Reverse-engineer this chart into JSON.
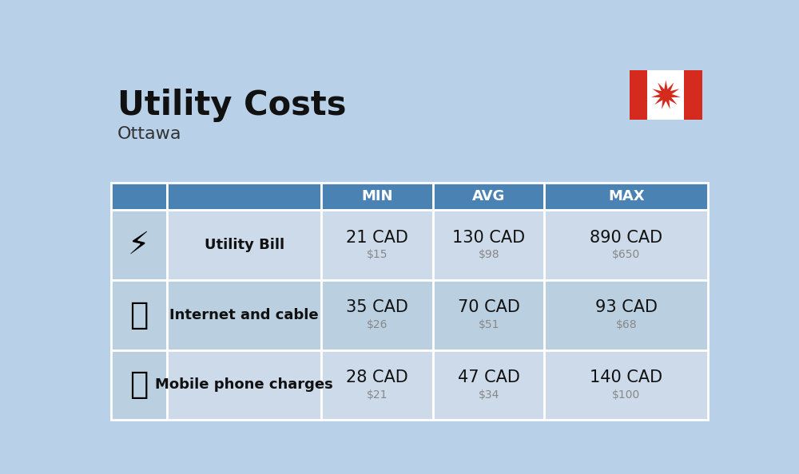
{
  "title": "Utility Costs",
  "subtitle": "Ottawa",
  "background_color": "#b8d0e8",
  "header_color": "#4a82b4",
  "header_text_color": "#ffffff",
  "row_color_light": "#ccdaea",
  "row_color_dark": "#bacfe0",
  "icon_col_bg": "#bacfe0",
  "divider_color": "#ffffff",
  "rows": [
    {
      "label": "Utility Bill",
      "min_cad": "21 CAD",
      "min_usd": "$15",
      "avg_cad": "130 CAD",
      "avg_usd": "$98",
      "max_cad": "890 CAD",
      "max_usd": "$650"
    },
    {
      "label": "Internet and cable",
      "min_cad": "35 CAD",
      "min_usd": "$26",
      "avg_cad": "70 CAD",
      "avg_usd": "$51",
      "max_cad": "93 CAD",
      "max_usd": "$68"
    },
    {
      "label": "Mobile phone charges",
      "min_cad": "28 CAD",
      "min_usd": "$21",
      "avg_cad": "47 CAD",
      "avg_usd": "$34",
      "max_cad": "140 CAD",
      "max_usd": "$100"
    }
  ],
  "title_fontsize": 30,
  "subtitle_fontsize": 16,
  "header_fontsize": 13,
  "label_fontsize": 13,
  "value_fontsize": 15,
  "subvalue_fontsize": 10,
  "flag_red": "#d52b1e",
  "flag_white": "#ffffff",
  "label_color": "#111111",
  "subvalue_color": "#888888"
}
